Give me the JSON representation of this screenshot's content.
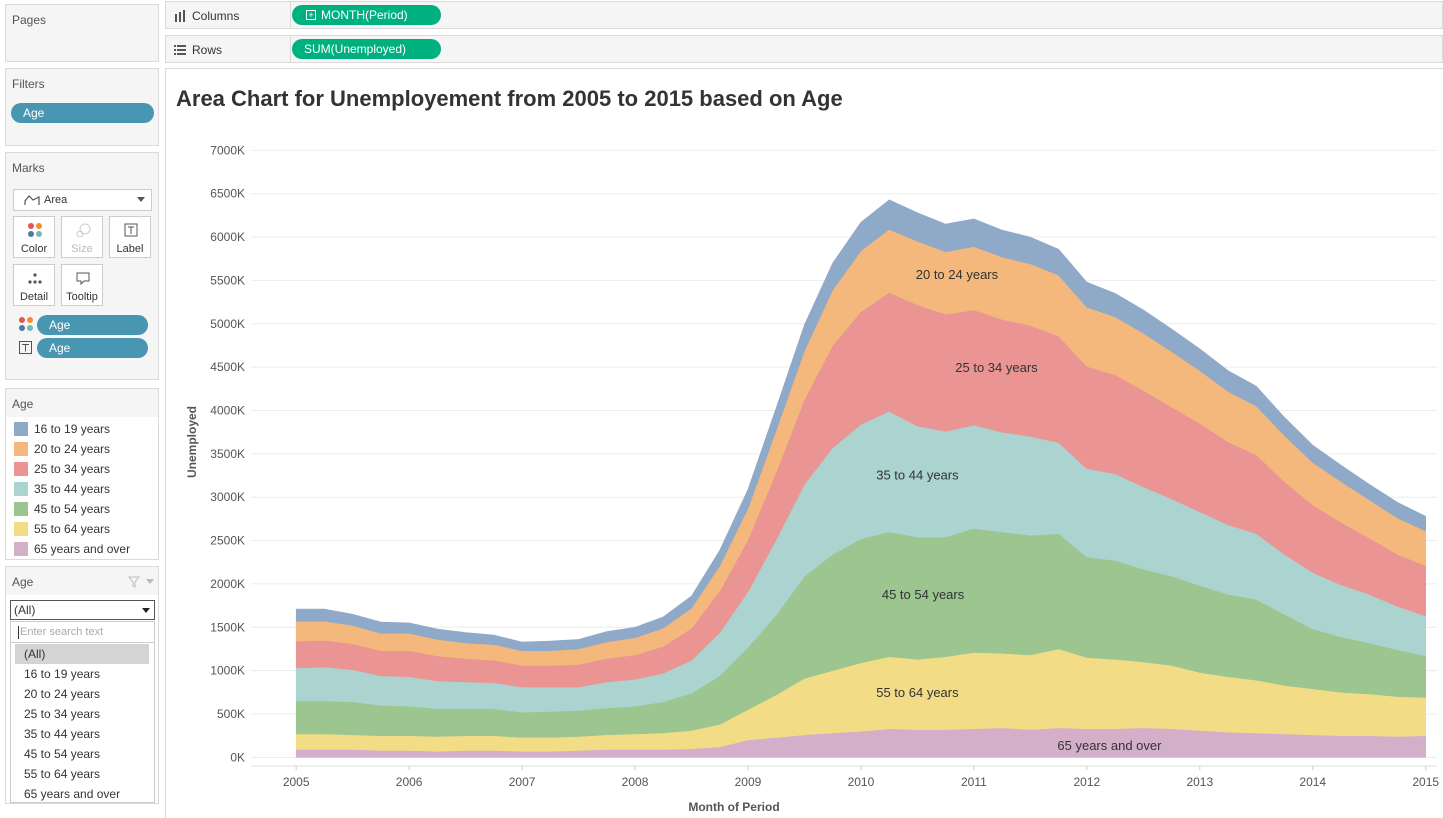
{
  "shelves": {
    "columns_label": "Columns",
    "columns_pill": "MONTH(Period)",
    "rows_label": "Rows",
    "rows_pill": "SUM(Unemployed)"
  },
  "pages": {
    "title": "Pages"
  },
  "filters": {
    "title": "Filters",
    "pill": "Age"
  },
  "marks": {
    "title": "Marks",
    "type": "Area",
    "buttons": [
      "Color",
      "Size",
      "Label",
      "Detail",
      "Tooltip"
    ],
    "fields": [
      {
        "icon": "color-dots-icon",
        "label": "Age"
      },
      {
        "icon": "text-label-icon",
        "label": "Age"
      }
    ]
  },
  "legend": {
    "title": "Age",
    "items": [
      {
        "label": "16 to 19 years",
        "color": "#8fa9c9"
      },
      {
        "label": "20 to 24 years",
        "color": "#f4b87c"
      },
      {
        "label": "25 to 34 years",
        "color": "#ea9593"
      },
      {
        "label": "35 to 44 years",
        "color": "#abd3cf"
      },
      {
        "label": "45 to 54 years",
        "color": "#9cc590"
      },
      {
        "label": "55 to 64 years",
        "color": "#f2dd86"
      },
      {
        "label": "65 years and over",
        "color": "#d3afc9"
      }
    ]
  },
  "filter_card": {
    "title": "Age",
    "selected": "(All)",
    "search_placeholder": "Enter search text",
    "options": [
      "(All)",
      "16 to 19 years",
      "20 to 24 years",
      "25 to 34 years",
      "35 to 44 years",
      "45 to 54 years",
      "55 to 64 years",
      "65 years and over"
    ]
  },
  "chart_data": {
    "type": "area",
    "stacked": true,
    "title": "Area Chart for Unemployement from 2005 to 2015 based on Age",
    "xlabel": "Month of Period",
    "ylabel": "Unemployed",
    "xlim": [
      2004.6,
      2015.1
    ],
    "ylim": [
      -100000,
      7350000
    ],
    "yticks": [
      0,
      500000,
      1000000,
      1500000,
      2000000,
      2500000,
      3000000,
      3500000,
      4000000,
      4500000,
      5000000,
      5500000,
      6000000,
      6500000,
      7000000
    ],
    "ytick_labels": [
      "0K",
      "500K",
      "1000K",
      "1500K",
      "2000K",
      "2500K",
      "3000K",
      "3500K",
      "4000K",
      "4500K",
      "5000K",
      "5500K",
      "6000K",
      "6500K",
      "7000K"
    ],
    "xticks": [
      2005,
      2006,
      2007,
      2008,
      2009,
      2010,
      2011,
      2012,
      2013,
      2014,
      2015
    ],
    "xtick_labels": [
      "2005",
      "2006",
      "2007",
      "2008",
      "2009",
      "2010",
      "2011",
      "2012",
      "2013",
      "2014",
      "2015"
    ],
    "x": [
      2005.0,
      2005.25,
      2005.5,
      2005.75,
      2006.0,
      2006.25,
      2006.5,
      2006.75,
      2007.0,
      2007.25,
      2007.5,
      2007.75,
      2008.0,
      2008.25,
      2008.5,
      2008.75,
      2009.0,
      2009.25,
      2009.5,
      2009.75,
      2010.0,
      2010.25,
      2010.5,
      2010.75,
      2011.0,
      2011.25,
      2011.5,
      2011.75,
      2012.0,
      2012.25,
      2012.5,
      2012.75,
      2013.0,
      2013.25,
      2013.5,
      2013.75,
      2014.0,
      2014.25,
      2014.5,
      2014.75,
      2015.0
    ],
    "series": [
      {
        "name": "65 years and over",
        "color": "#d3afc9",
        "values": [
          90000,
          90000,
          90000,
          80000,
          80000,
          70000,
          80000,
          80000,
          70000,
          70000,
          80000,
          90000,
          90000,
          90000,
          100000,
          120000,
          200000,
          230000,
          260000,
          280000,
          300000,
          330000,
          320000,
          320000,
          330000,
          340000,
          320000,
          340000,
          330000,
          330000,
          340000,
          330000,
          310000,
          290000,
          280000,
          270000,
          260000,
          250000,
          250000,
          240000,
          250000
        ]
      },
      {
        "name": "55 to 64 years",
        "color": "#f2dd86",
        "values": [
          180000,
          180000,
          170000,
          170000,
          170000,
          170000,
          170000,
          170000,
          160000,
          160000,
          160000,
          170000,
          180000,
          190000,
          210000,
          260000,
          350000,
          490000,
          650000,
          720000,
          790000,
          830000,
          810000,
          840000,
          880000,
          860000,
          860000,
          910000,
          820000,
          800000,
          760000,
          730000,
          670000,
          640000,
          610000,
          560000,
          530000,
          500000,
          480000,
          460000,
          440000
        ]
      },
      {
        "name": "45 to 54 years",
        "color": "#9cc590",
        "values": [
          380000,
          380000,
          380000,
          350000,
          340000,
          320000,
          310000,
          310000,
          290000,
          300000,
          300000,
          310000,
          320000,
          360000,
          430000,
          560000,
          720000,
          920000,
          1180000,
          1340000,
          1430000,
          1440000,
          1410000,
          1380000,
          1430000,
          1400000,
          1380000,
          1330000,
          1160000,
          1140000,
          1070000,
          1030000,
          1000000,
          950000,
          930000,
          820000,
          690000,
          640000,
          590000,
          540000,
          480000
        ]
      },
      {
        "name": "35 to 44 years",
        "color": "#abd3cf",
        "values": [
          380000,
          390000,
          370000,
          340000,
          340000,
          320000,
          310000,
          300000,
          290000,
          280000,
          270000,
          300000,
          310000,
          330000,
          380000,
          500000,
          640000,
          870000,
          1060000,
          1230000,
          1320000,
          1390000,
          1280000,
          1220000,
          1190000,
          1150000,
          1140000,
          1050000,
          1020000,
          1000000,
          950000,
          890000,
          850000,
          800000,
          760000,
          690000,
          650000,
          600000,
          560000,
          500000,
          460000
        ]
      },
      {
        "name": "25 to 34 years",
        "color": "#ea9593",
        "values": [
          310000,
          310000,
          300000,
          290000,
          300000,
          290000,
          270000,
          260000,
          250000,
          250000,
          260000,
          270000,
          280000,
          310000,
          370000,
          480000,
          600000,
          780000,
          980000,
          1180000,
          1300000,
          1370000,
          1400000,
          1350000,
          1330000,
          1300000,
          1280000,
          1230000,
          1180000,
          1140000,
          1110000,
          1060000,
          1020000,
          960000,
          910000,
          840000,
          780000,
          720000,
          650000,
          600000,
          580000
        ]
      },
      {
        "name": "20 to 24 years",
        "color": "#f4b87c",
        "values": [
          230000,
          220000,
          210000,
          200000,
          200000,
          190000,
          180000,
          180000,
          170000,
          170000,
          180000,
          190000,
          200000,
          210000,
          230000,
          290000,
          360000,
          480000,
          560000,
          640000,
          700000,
          730000,
          730000,
          720000,
          730000,
          720000,
          710000,
          700000,
          680000,
          670000,
          660000,
          640000,
          610000,
          580000,
          560000,
          530000,
          490000,
          470000,
          440000,
          420000,
          400000
        ]
      },
      {
        "name": "16 to 19 years",
        "color": "#8fa9c9",
        "values": [
          140000,
          140000,
          130000,
          130000,
          120000,
          120000,
          120000,
          110000,
          100000,
          110000,
          110000,
          120000,
          120000,
          130000,
          140000,
          180000,
          220000,
          260000,
          300000,
          310000,
          330000,
          340000,
          330000,
          320000,
          320000,
          310000,
          310000,
          300000,
          290000,
          270000,
          270000,
          260000,
          250000,
          240000,
          230000,
          210000,
          200000,
          190000,
          180000,
          180000,
          170000
        ]
      }
    ],
    "area_labels": [
      {
        "series": "20 to 24 years",
        "text": "20 to 24 years",
        "x": 2010.85,
        "y": 5560000
      },
      {
        "series": "25 to 34 years",
        "text": "25 to 34 years",
        "x": 2011.2,
        "y": 4490000
      },
      {
        "series": "35 to 44 years",
        "text": "35 to 44 years",
        "x": 2010.5,
        "y": 3250000
      },
      {
        "series": "45 to 54 years",
        "text": "45 to 54 years",
        "x": 2010.55,
        "y": 1870000
      },
      {
        "series": "55 to 64 years",
        "text": "55 to 64 years",
        "x": 2010.5,
        "y": 740000
      },
      {
        "series": "65 years and over",
        "text": "65 years and over",
        "x": 2012.2,
        "y": 130000
      }
    ]
  }
}
